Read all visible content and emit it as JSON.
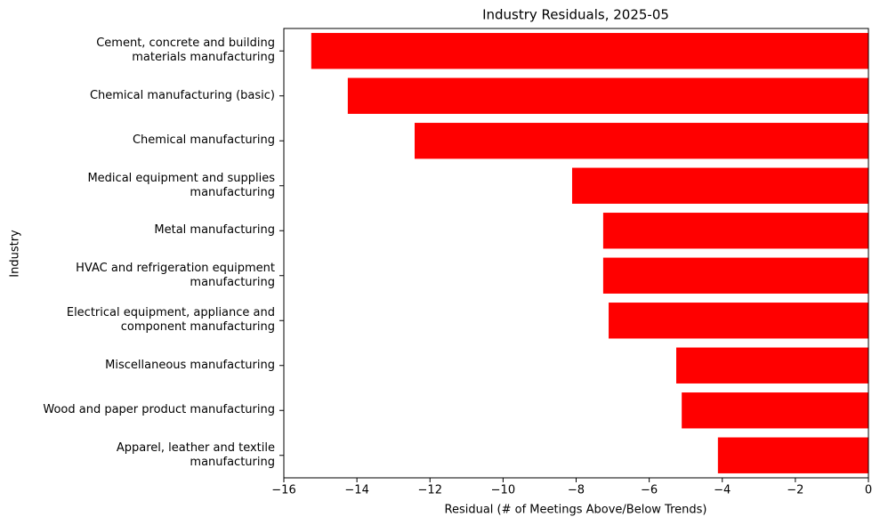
{
  "chart_data": {
    "type": "barh",
    "title": "Industry Residuals, 2025-05",
    "x_label": "Residual (# of Meetings Above/Below Trends)",
    "y_label": "Industry",
    "categories": [
      "Cement, concrete and building\nmaterials manufacturing",
      "Chemical manufacturing (basic)",
      "Chemical manufacturing",
      "Medical equipment and supplies\nmanufacturing",
      "Metal manufacturing",
      "HVAC and refrigeration equipment\nmanufacturing",
      "Electrical equipment, appliance and\ncomponent manufacturing",
      "Miscellaneous manufacturing",
      "Wood and paper product manufacturing",
      "Apparel, leather and textile\nmanufacturing"
    ],
    "values": [
      -15.25,
      -14.25,
      -12.42,
      -8.11,
      -7.26,
      -7.26,
      -7.11,
      -5.26,
      -5.11,
      -4.12
    ],
    "color": "#ff0000",
    "xlim": [
      -16,
      0
    ],
    "xticks": [
      {
        "value": -16,
        "label": "−16"
      },
      {
        "value": -14,
        "label": "−14"
      },
      {
        "value": -12,
        "label": "−12"
      },
      {
        "value": -10,
        "label": "−10"
      },
      {
        "value": -8,
        "label": "−8"
      },
      {
        "value": -6,
        "label": "−6"
      },
      {
        "value": -4,
        "label": "−4"
      },
      {
        "value": -2,
        "label": "−2"
      },
      0
    ],
    "grid": false
  }
}
